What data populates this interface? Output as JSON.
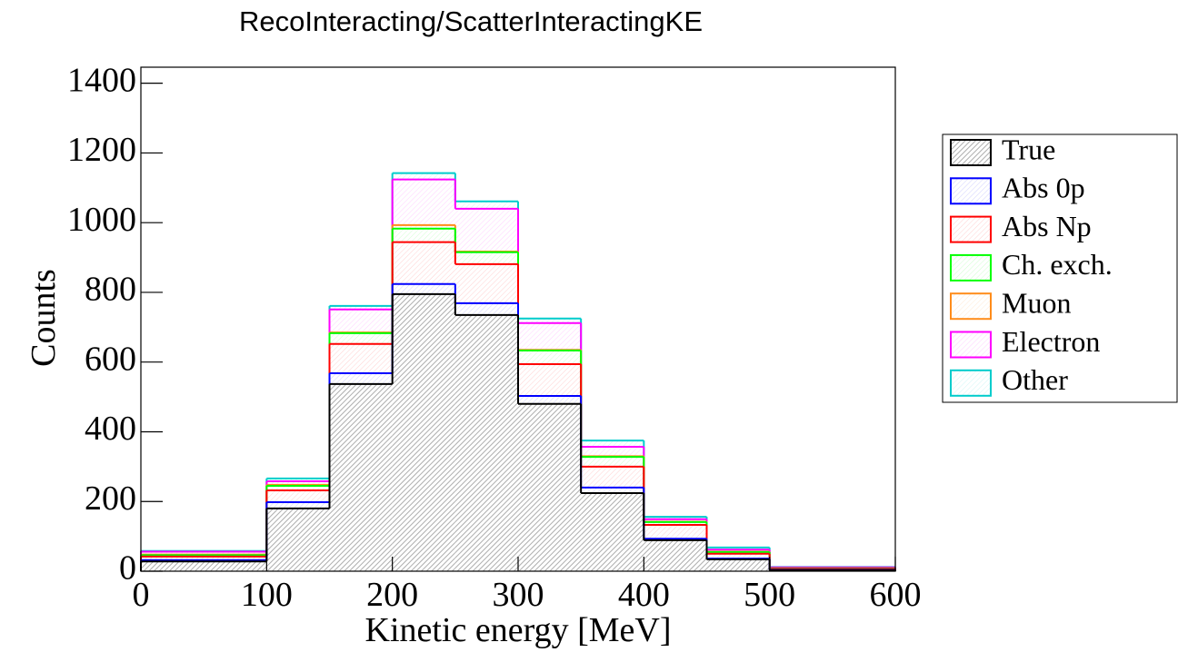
{
  "chart_data": {
    "type": "stacked-histogram",
    "title": "RecoInteracting/ScatterInteractingKE",
    "x_label": "Kinetic energy [MeV]",
    "y_label": "Counts",
    "bins": [
      0,
      100,
      150,
      200,
      250,
      300,
      350,
      400,
      450,
      500,
      600
    ],
    "series": [
      {
        "name": "True",
        "color": "#000000",
        "values": [
          28,
          180,
          537,
          795,
          735,
          480,
          224,
          89,
          34,
          3
        ]
      },
      {
        "name": "Abs 0p",
        "color": "#0000ff",
        "values": [
          4,
          18,
          31,
          29,
          34,
          23,
          16,
          4,
          2,
          1
        ]
      },
      {
        "name": "Abs Np",
        "color": "#ff0000",
        "values": [
          10,
          34,
          84,
          120,
          112,
          91,
          60,
          40,
          14,
          3
        ]
      },
      {
        "name": "Ch. exch.",
        "color": "#00ff00",
        "values": [
          4,
          13,
          31,
          39,
          34,
          39,
          28,
          8,
          5,
          1
        ]
      },
      {
        "name": "Muon",
        "color": "#ff8c1a",
        "values": [
          2,
          3,
          2,
          10,
          2,
          2,
          2,
          1,
          1,
          0
        ]
      },
      {
        "name": "Electron",
        "color": "#ff00ff",
        "values": [
          8,
          10,
          66,
          131,
          123,
          77,
          27,
          7,
          6,
          3
        ]
      },
      {
        "name": "Other",
        "color": "#00cccc",
        "values": [
          2,
          8,
          10,
          18,
          21,
          13,
          18,
          7,
          6,
          1
        ]
      }
    ],
    "xlim": [
      0,
      600
    ],
    "xticks": [
      0,
      100,
      200,
      300,
      400,
      500,
      600
    ],
    "ylim": [
      0,
      1446
    ],
    "yticks": [
      0,
      200,
      400,
      600,
      800,
      1000,
      1200,
      1400
    ]
  }
}
